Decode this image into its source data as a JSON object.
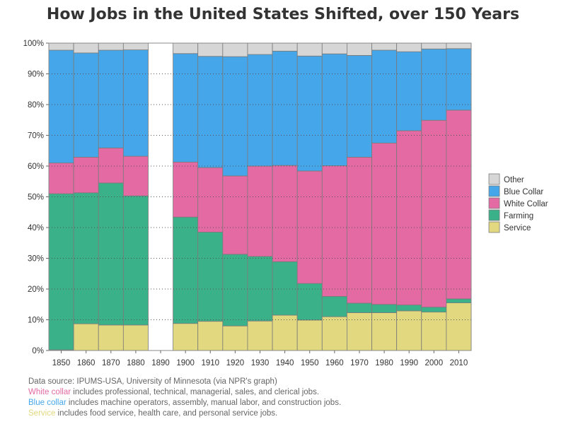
{
  "chart_data": {
    "type": "bar",
    "stacked": true,
    "title": "How Jobs in the United States Shifted, over 150 Years",
    "categories": [
      "1850",
      "1860",
      "1870",
      "1880",
      "1890",
      "1900",
      "1910",
      "1920",
      "1930",
      "1940",
      "1950",
      "1960",
      "1970",
      "1980",
      "1990",
      "2000",
      "2010"
    ],
    "y_ticks": [
      "0%",
      "10%",
      "20%",
      "30%",
      "40%",
      "50%",
      "60%",
      "70%",
      "80%",
      "90%",
      "100%"
    ],
    "ylim": [
      0,
      100
    ],
    "grid": "horizontal dotted",
    "legend_placement": "right",
    "series": [
      {
        "name": "Service",
        "color": "#e2d87f",
        "values": [
          0.2,
          8.7,
          8.3,
          8.3,
          null,
          8.8,
          9.5,
          8.0,
          9.6,
          11.5,
          9.9,
          11.0,
          12.3,
          12.3,
          12.9,
          12.5,
          15.5
        ]
      },
      {
        "name": "Farming",
        "color": "#3bb18a",
        "values": [
          50.8,
          42.6,
          46.2,
          42.0,
          null,
          34.6,
          29.0,
          23.3,
          21.0,
          17.4,
          11.9,
          6.6,
          3.1,
          2.7,
          1.9,
          1.6,
          1.3
        ]
      },
      {
        "name": "White Collar",
        "color": "#e46aa3",
        "values": [
          10.0,
          11.6,
          11.4,
          12.9,
          null,
          17.9,
          21.0,
          25.5,
          29.4,
          31.3,
          36.6,
          42.5,
          47.5,
          52.5,
          56.7,
          60.8,
          61.4
        ]
      },
      {
        "name": "Blue Collar",
        "color": "#45a7ea",
        "values": [
          36.7,
          33.9,
          31.8,
          34.6,
          null,
          35.3,
          36.2,
          38.8,
          36.3,
          37.2,
          37.4,
          36.4,
          33.1,
          30.2,
          25.7,
          23.2,
          20.0
        ]
      },
      {
        "name": "Other",
        "color": "#d6d6d6",
        "values": [
          2.3,
          3.2,
          2.3,
          2.2,
          null,
          3.4,
          4.3,
          4.4,
          3.7,
          2.6,
          4.2,
          3.5,
          4.0,
          2.3,
          2.8,
          1.9,
          1.8
        ]
      }
    ]
  },
  "legend_order": [
    "Other",
    "Blue Collar",
    "White Collar",
    "Farming",
    "Service"
  ],
  "footnotes": {
    "source": "Data source: IPUMS-USA, University of Minnesota (via NPR's graph)",
    "white_key": "White collar",
    "white_rest": " includes professional, technical, managerial, sales, and clerical jobs.",
    "blue_key": "Blue collar",
    "blue_rest": " includes machine operators, assembly, manual labor, and construction jobs.",
    "service_key": "Service",
    "service_rest": " includes food service, health care, and personal service jobs.",
    "white_color": "#e46aa3",
    "blue_color": "#45a7ea",
    "service_color": "#e2d87f"
  }
}
